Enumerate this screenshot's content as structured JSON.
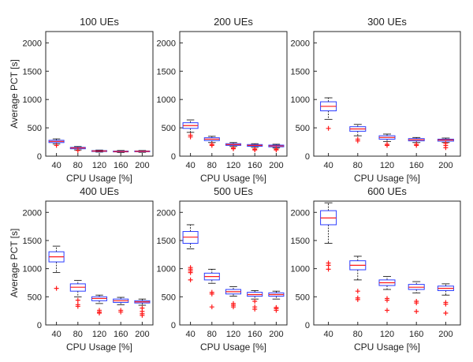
{
  "chart_data": [
    {
      "type": "box",
      "title": "100 UEs",
      "xlabel": "CPU Usage [%]",
      "ylabel": "Average PCT [s]",
      "categories": [
        "40",
        "80",
        "120",
        "160",
        "200"
      ],
      "ylim": [
        0,
        2200
      ],
      "yticks": [
        0,
        500,
        1000,
        1500,
        2000
      ],
      "boxes": [
        {
          "q1": 240,
          "median": 260,
          "q3": 280,
          "whisker_low": 215,
          "whisker_high": 305,
          "outliers": [
            190
          ]
        },
        {
          "q1": 130,
          "median": 145,
          "q3": 155,
          "whisker_low": 110,
          "whisker_high": 170,
          "outliers": [
            100
          ]
        },
        {
          "q1": 82,
          "median": 90,
          "q3": 98,
          "whisker_low": 72,
          "whisker_high": 108,
          "outliers": []
        },
        {
          "q1": 75,
          "median": 82,
          "q3": 90,
          "whisker_low": 65,
          "whisker_high": 100,
          "outliers": []
        },
        {
          "q1": 78,
          "median": 85,
          "q3": 92,
          "whisker_low": 68,
          "whisker_high": 100,
          "outliers": []
        }
      ]
    },
    {
      "type": "box",
      "title": "200 UEs",
      "xlabel": "CPU Usage [%]",
      "ylabel": "",
      "categories": [
        "40",
        "80",
        "120",
        "160",
        "200"
      ],
      "ylim": [
        0,
        2200
      ],
      "yticks": [
        0,
        500,
        1000,
        1500,
        2000
      ],
      "boxes": [
        {
          "q1": 490,
          "median": 540,
          "q3": 590,
          "whisker_low": 420,
          "whisker_high": 640,
          "outliers": [
            370,
            340
          ]
        },
        {
          "q1": 275,
          "median": 300,
          "q3": 325,
          "whisker_low": 240,
          "whisker_high": 350,
          "outliers": [
            210,
            190
          ]
        },
        {
          "q1": 190,
          "median": 205,
          "q3": 220,
          "whisker_low": 170,
          "whisker_high": 240,
          "outliers": [
            145,
            130
          ]
        },
        {
          "q1": 175,
          "median": 190,
          "q3": 205,
          "whisker_low": 155,
          "whisker_high": 220,
          "outliers": [
            125,
            110
          ]
        },
        {
          "q1": 165,
          "median": 180,
          "q3": 195,
          "whisker_low": 145,
          "whisker_high": 210,
          "outliers": [
            125,
            110
          ]
        }
      ]
    },
    {
      "type": "box",
      "title": "300 UEs",
      "xlabel": "CPU Usage [%]",
      "ylabel": "",
      "categories": [
        "40",
        "80",
        "120",
        "160",
        "200"
      ],
      "ylim": [
        0,
        2200
      ],
      "yticks": [
        0,
        500,
        1000,
        1500,
        2000
      ],
      "boxes": [
        {
          "q1": 800,
          "median": 880,
          "q3": 960,
          "whisker_low": 650,
          "whisker_high": 1030,
          "outliers": [
            490
          ]
        },
        {
          "q1": 440,
          "median": 480,
          "q3": 520,
          "whisker_low": 360,
          "whisker_high": 560,
          "outliers": [
            300,
            270
          ]
        },
        {
          "q1": 300,
          "median": 330,
          "q3": 360,
          "whisker_low": 260,
          "whisker_high": 390,
          "outliers": [
            210,
            190
          ]
        },
        {
          "q1": 270,
          "median": 290,
          "q3": 310,
          "whisker_low": 240,
          "whisker_high": 330,
          "outliers": [
            210,
            190
          ]
        },
        {
          "q1": 265,
          "median": 285,
          "q3": 300,
          "whisker_low": 240,
          "whisker_high": 320,
          "outliers": [
            230,
            190,
            150
          ]
        }
      ]
    },
    {
      "type": "box",
      "title": "400 UEs",
      "xlabel": "CPU Usage [%]",
      "ylabel": "Average PCT [s]",
      "categories": [
        "40",
        "80",
        "120",
        "160",
        "200"
      ],
      "ylim": [
        0,
        2200
      ],
      "yticks": [
        0,
        500,
        1000,
        1500,
        2000
      ],
      "boxes": [
        {
          "q1": 1120,
          "median": 1210,
          "q3": 1300,
          "whisker_low": 930,
          "whisker_high": 1400,
          "outliers": [
            650
          ]
        },
        {
          "q1": 600,
          "median": 670,
          "q3": 730,
          "whisker_low": 500,
          "whisker_high": 790,
          "outliers": [
            440,
            360,
            330
          ]
        },
        {
          "q1": 430,
          "median": 470,
          "q3": 500,
          "whisker_low": 380,
          "whisker_high": 530,
          "outliers": [
            260,
            230,
            210
          ]
        },
        {
          "q1": 400,
          "median": 430,
          "q3": 460,
          "whisker_low": 360,
          "whisker_high": 490,
          "outliers": [
            260,
            230
          ]
        },
        {
          "q1": 390,
          "median": 410,
          "q3": 430,
          "whisker_low": 350,
          "whisker_high": 460,
          "outliers": [
            300,
            240,
            200,
            170
          ]
        }
      ]
    },
    {
      "type": "box",
      "title": "500 UEs",
      "xlabel": "CPU Usage [%]",
      "ylabel": "",
      "categories": [
        "40",
        "80",
        "120",
        "160",
        "200"
      ],
      "ylim": [
        0,
        2200
      ],
      "yticks": [
        0,
        500,
        1000,
        1500,
        2000
      ],
      "boxes": [
        {
          "q1": 1450,
          "median": 1560,
          "q3": 1660,
          "whisker_low": 1350,
          "whisker_high": 1780,
          "outliers": [
            1020,
            990,
            960,
            930,
            800
          ]
        },
        {
          "q1": 800,
          "median": 860,
          "q3": 920,
          "whisker_low": 740,
          "whisker_high": 990,
          "outliers": [
            580,
            550,
            320
          ]
        },
        {
          "q1": 550,
          "median": 590,
          "q3": 630,
          "whisker_low": 510,
          "whisker_high": 680,
          "outliers": [
            380,
            350,
            320
          ]
        },
        {
          "q1": 510,
          "median": 540,
          "q3": 580,
          "whisker_low": 460,
          "whisker_high": 610,
          "outliers": [
            420,
            320,
            280
          ]
        },
        {
          "q1": 510,
          "median": 540,
          "q3": 570,
          "whisker_low": 460,
          "whisker_high": 600,
          "outliers": [
            310,
            290,
            260
          ]
        }
      ]
    },
    {
      "type": "box",
      "title": "600 UEs",
      "xlabel": "CPU Usage [%]",
      "ylabel": "",
      "categories": [
        "40",
        "80",
        "120",
        "160",
        "200"
      ],
      "ylim": [
        0,
        2200
      ],
      "yticks": [
        0,
        500,
        1000,
        1500,
        2000
      ],
      "boxes": [
        {
          "q1": 1780,
          "median": 1900,
          "q3": 2030,
          "whisker_low": 1450,
          "whisker_high": 2170,
          "outliers": [
            1100,
            1060,
            990
          ]
        },
        {
          "q1": 980,
          "median": 1060,
          "q3": 1140,
          "whisker_low": 800,
          "whisker_high": 1220,
          "outliers": [
            600,
            480,
            450
          ]
        },
        {
          "q1": 700,
          "median": 750,
          "q3": 800,
          "whisker_low": 630,
          "whisker_high": 860,
          "outliers": [
            470,
            440,
            260
          ]
        },
        {
          "q1": 630,
          "median": 670,
          "q3": 720,
          "whisker_low": 570,
          "whisker_high": 770,
          "outliers": [
            420,
            390,
            240
          ]
        },
        {
          "q1": 610,
          "median": 650,
          "q3": 690,
          "whisker_low": 530,
          "whisker_high": 730,
          "outliers": [
            400,
            370,
            210
          ]
        }
      ]
    }
  ]
}
